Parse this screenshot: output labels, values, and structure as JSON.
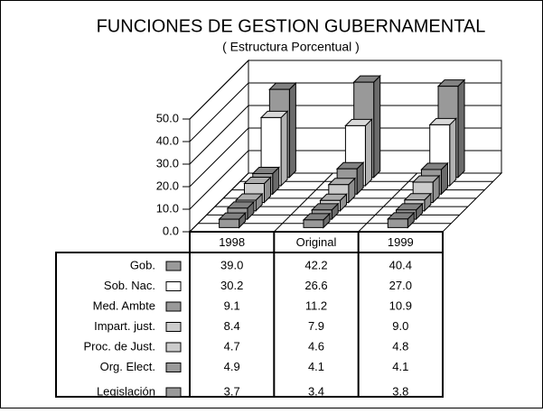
{
  "chart_data": {
    "type": "bar3d",
    "title": "FUNCIONES DE GESTION GUBERNAMENTAL",
    "subtitle": "( Estructura Porcentual )",
    "categories": [
      "1998",
      "Original",
      "1999"
    ],
    "series": [
      {
        "name": "Gob.",
        "color": "#999999",
        "values": [
          39.0,
          42.2,
          40.4
        ],
        "value_labels": [
          "39.0",
          "42.2",
          "40.4"
        ]
      },
      {
        "name": "Sob. Nac.",
        "color": "#ffffff",
        "values": [
          30.2,
          26.6,
          27.0
        ],
        "value_labels": [
          "30.2",
          "26.6",
          "27.0"
        ]
      },
      {
        "name": "Med. Ambte",
        "color": "#999999",
        "values": [
          9.1,
          11.2,
          10.9
        ],
        "value_labels": [
          "9.1",
          "11.2",
          "10.9"
        ]
      },
      {
        "name": "Impart. just.",
        "color": "#cccccc",
        "values": [
          8.4,
          7.9,
          9.0
        ],
        "value_labels": [
          "8.4",
          "7.9",
          "9.0"
        ]
      },
      {
        "name": "Proc. de Just.",
        "color": "#cccccc",
        "values": [
          4.7,
          4.6,
          4.8
        ],
        "value_labels": [
          "4.7",
          "4.6",
          "4.8"
        ]
      },
      {
        "name": "Org. Elect.",
        "color": "#999999",
        "values": [
          4.9,
          4.1,
          4.1
        ],
        "value_labels": [
          "4.9",
          "4.1",
          "4.1"
        ]
      },
      {
        "name": "Legislación",
        "color": "#999999",
        "values": [
          3.7,
          3.4,
          3.8
        ],
        "value_labels": [
          "3.7",
          "3.4",
          "3.8"
        ]
      }
    ],
    "ylim": [
      0,
      50
    ],
    "yticks": [
      {
        "value": 0,
        "label": "0.0"
      },
      {
        "value": 10,
        "label": "10.0"
      },
      {
        "value": 20,
        "label": "20.0"
      },
      {
        "value": 30,
        "label": "30.0"
      },
      {
        "value": 40,
        "label": "40.0"
      },
      {
        "value": 50,
        "label": "50.0"
      }
    ],
    "grid": true
  }
}
